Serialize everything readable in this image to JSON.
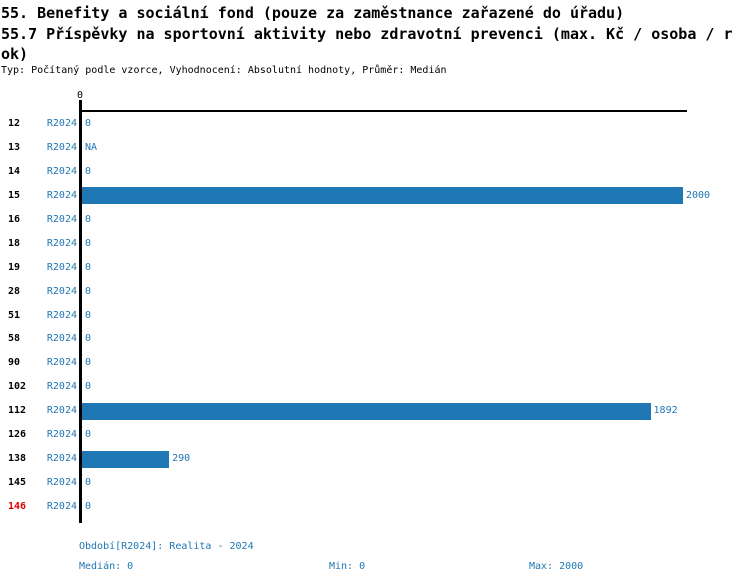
{
  "header": {
    "title1": "55. Benefity a sociální fond (pouze za zaměstnance zařazené do úřadu)",
    "title2_line1": "55.7 Příspěvky na sportovní aktivity nebo zdravotní prevenci (max. Kč / osoba / r",
    "title2_line2": "ok)",
    "subtitle": "Typ: Počítaný podle vzorce, Vyhodnocení: Absolutní hodnoty, Průměr: Medián"
  },
  "chart_data": {
    "type": "bar",
    "orientation": "horizontal",
    "title": "55.7 Příspěvky na sportovní aktivity nebo zdravotní prevenci (max. Kč / osoba / rok)",
    "categories": [
      "12",
      "13",
      "14",
      "15",
      "16",
      "18",
      "19",
      "28",
      "51",
      "58",
      "90",
      "102",
      "112",
      "126",
      "138",
      "145",
      "146"
    ],
    "series": [
      {
        "name": "R2024",
        "values": [
          0,
          null,
          0,
          2000,
          0,
          0,
          0,
          0,
          0,
          0,
          0,
          0,
          1892,
          0,
          290,
          0,
          0
        ],
        "value_labels": [
          "0",
          "NA",
          "0",
          "2000",
          "0",
          "0",
          "0",
          "0",
          "0",
          "0",
          "0",
          "0",
          "1892",
          "0",
          "290",
          "0",
          "0"
        ]
      }
    ],
    "xlim": [
      0,
      2000
    ],
    "x_tick_labels": [
      "0"
    ],
    "highlighted_categories": [
      "146"
    ],
    "grid": false,
    "legend": false,
    "stats": {
      "median": 0,
      "min": 0,
      "max": 2000
    },
    "colors": {
      "bar": "#1f77b4",
      "blue_text": "#1f77b4",
      "red_text": "#e00000",
      "axis": "#000000"
    }
  },
  "footer": {
    "period_line": "Období[R2024]: Realita - 2024",
    "median_label": "Medián: 0",
    "min_label": "Min: 0",
    "max_label": "Max: 2000"
  }
}
